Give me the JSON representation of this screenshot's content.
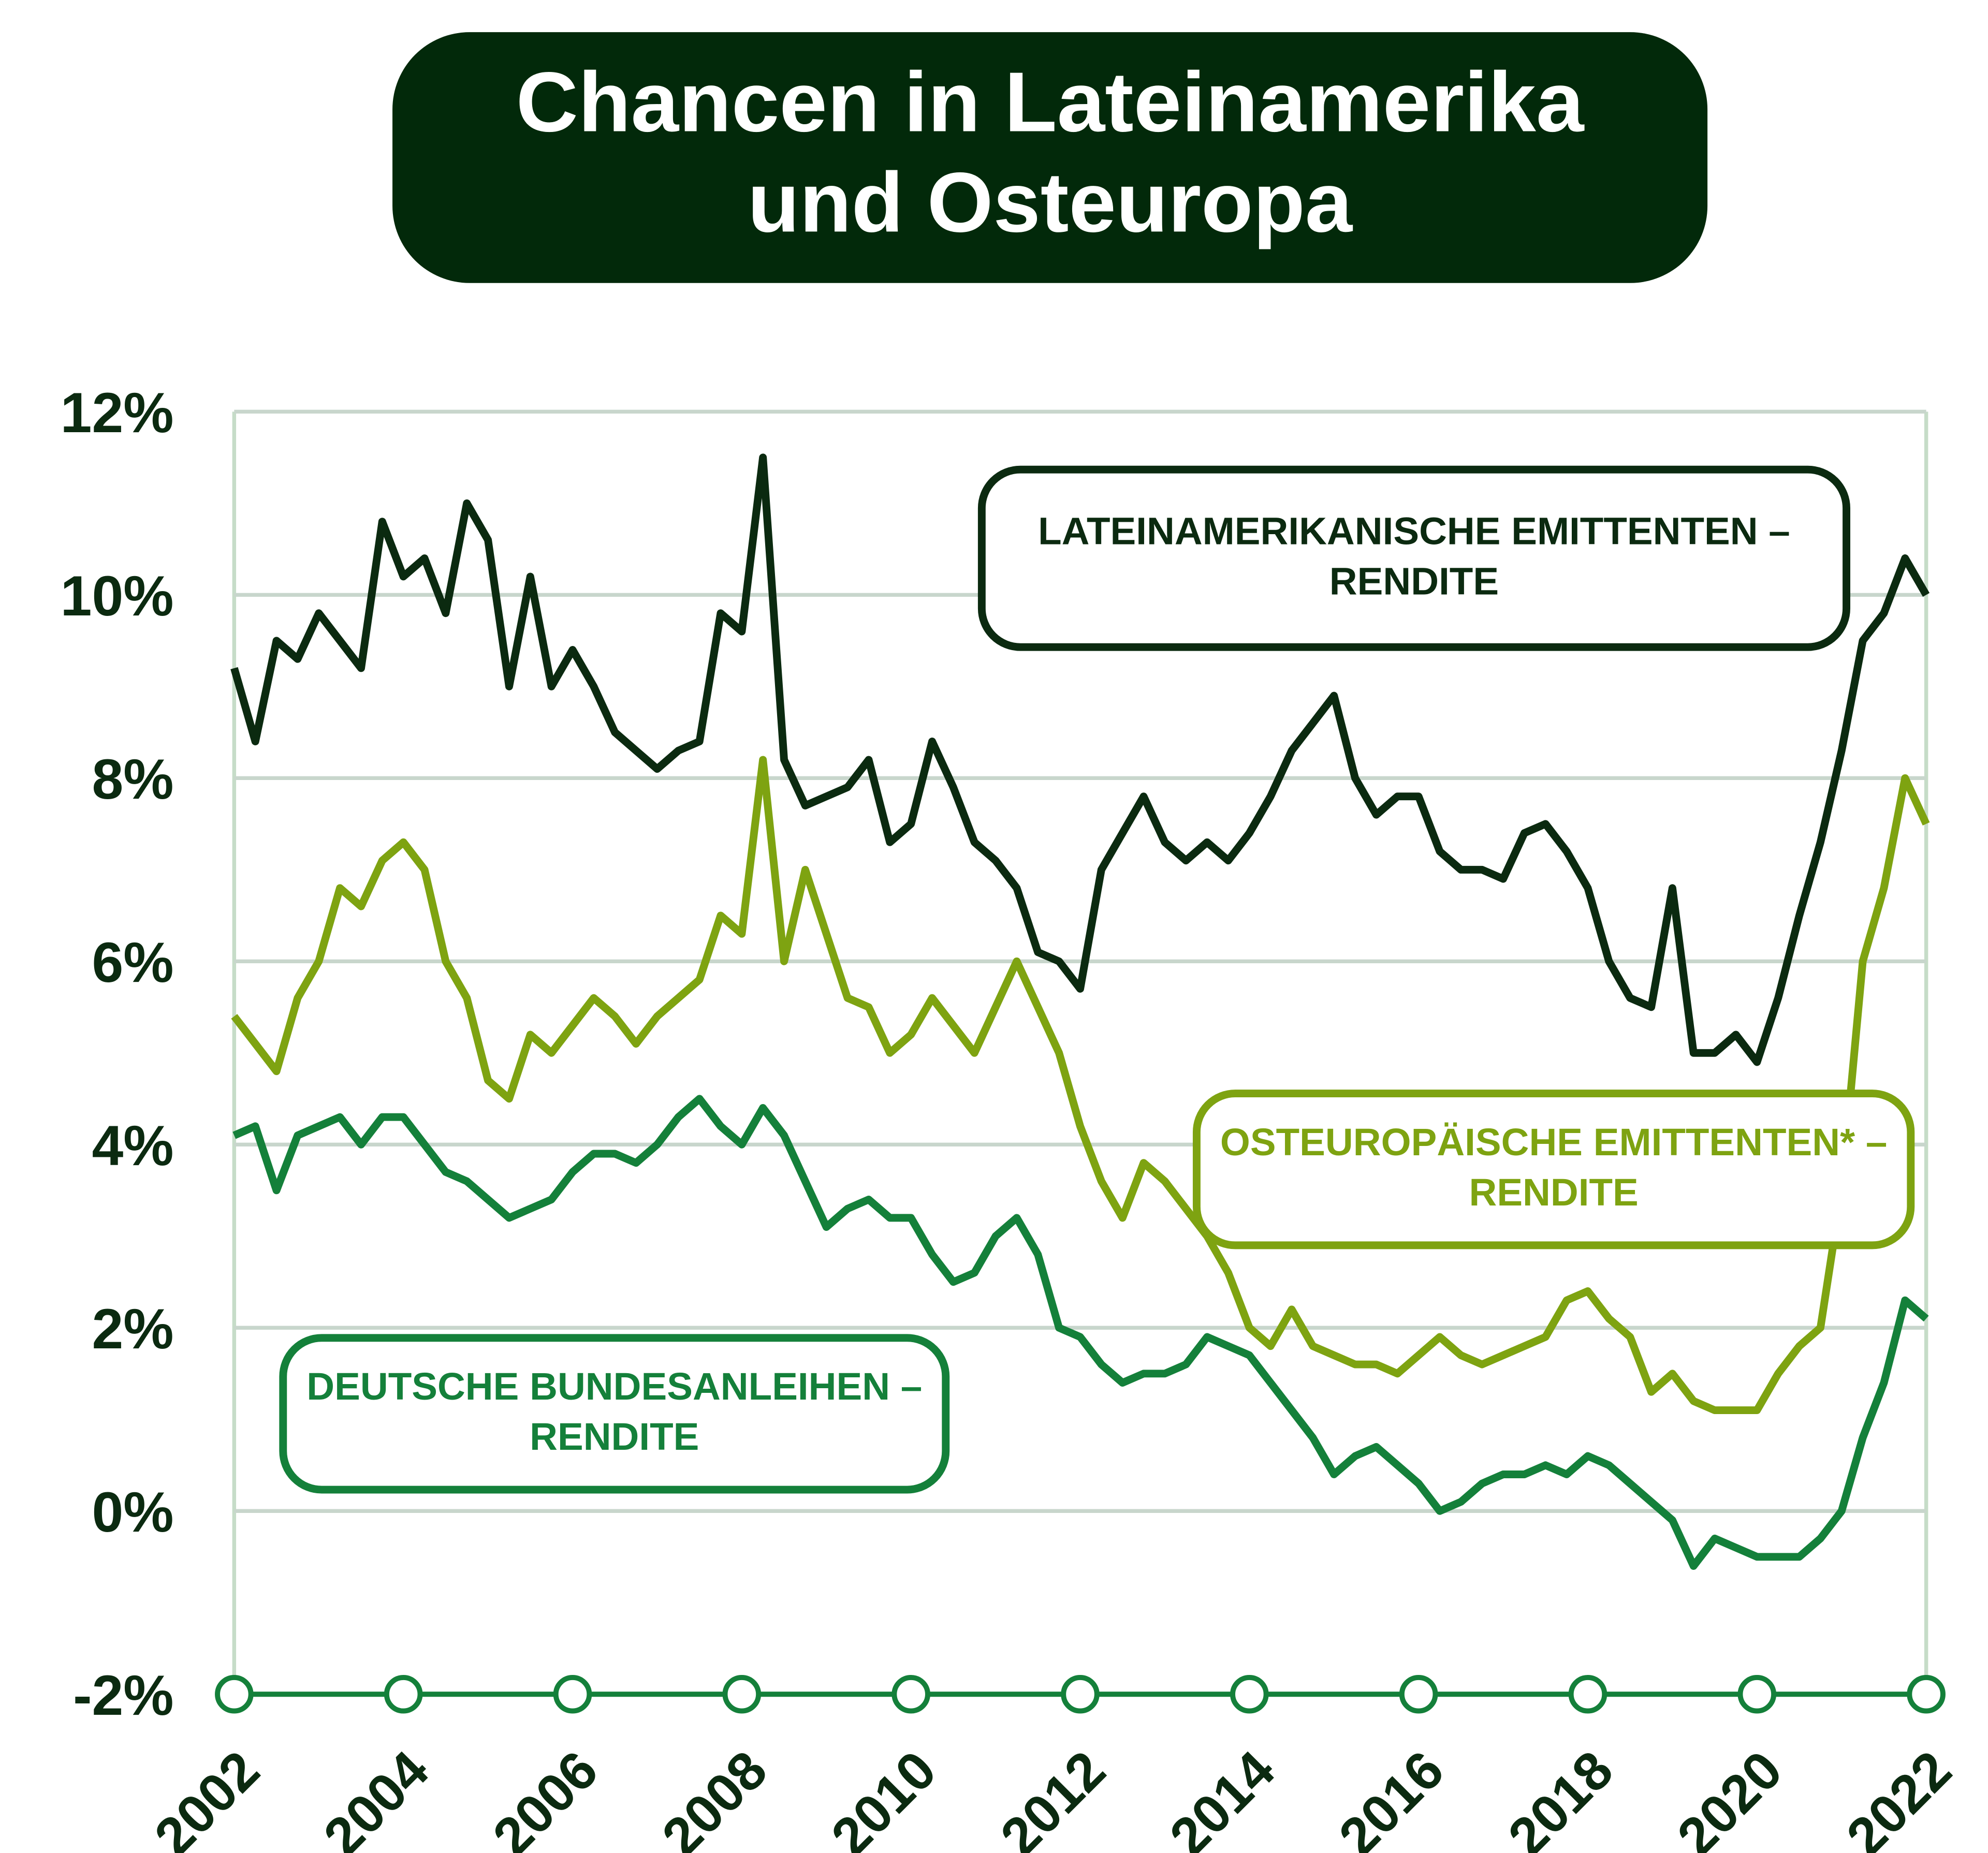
{
  "chart_data": {
    "type": "line",
    "title": [
      "Chancen in Lateinamerika",
      "und Osteuropa"
    ],
    "x": [
      2002,
      2002.25,
      2002.5,
      2002.75,
      2003,
      2003.25,
      2003.5,
      2003.75,
      2004,
      2004.25,
      2004.5,
      2004.75,
      2005,
      2005.25,
      2005.5,
      2005.75,
      2006,
      2006.25,
      2006.5,
      2006.75,
      2007,
      2007.25,
      2007.5,
      2007.75,
      2008,
      2008.25,
      2008.5,
      2008.75,
      2009,
      2009.25,
      2009.5,
      2009.75,
      2010,
      2010.25,
      2010.5,
      2010.75,
      2011,
      2011.25,
      2011.5,
      2011.75,
      2012,
      2012.25,
      2012.5,
      2012.75,
      2013,
      2013.25,
      2013.5,
      2013.75,
      2014,
      2014.25,
      2014.5,
      2014.75,
      2015,
      2015.25,
      2015.5,
      2015.75,
      2016,
      2016.25,
      2016.5,
      2016.75,
      2017,
      2017.25,
      2017.5,
      2017.75,
      2018,
      2018.25,
      2018.5,
      2018.75,
      2019,
      2019.25,
      2019.5,
      2019.75,
      2020,
      2020.25,
      2020.5,
      2020.75,
      2021,
      2021.25,
      2021.5,
      2021.75,
      2022
    ],
    "series": [
      {
        "name": "LATEINAMERIKANISCHE EMITTENTEN – RENDITE",
        "color": "#0b2a10",
        "values": [
          9.2,
          8.4,
          9.5,
          9.3,
          9.8,
          9.5,
          9.2,
          10.8,
          10.2,
          10.4,
          9.8,
          11.0,
          10.6,
          9.0,
          10.2,
          9.0,
          9.4,
          9.0,
          8.5,
          8.3,
          8.1,
          8.3,
          8.4,
          9.8,
          9.6,
          11.5,
          8.2,
          7.7,
          7.8,
          7.9,
          8.2,
          7.3,
          7.5,
          8.4,
          7.9,
          7.3,
          7.1,
          6.8,
          6.1,
          6.0,
          5.7,
          7.0,
          7.4,
          7.8,
          7.3,
          7.1,
          7.3,
          7.1,
          7.4,
          7.8,
          8.3,
          8.6,
          8.9,
          8.0,
          7.6,
          7.8,
          7.8,
          7.2,
          7.0,
          7.0,
          6.9,
          7.4,
          7.5,
          7.2,
          6.8,
          6.0,
          5.6,
          5.5,
          6.8,
          5.0,
          5.0,
          5.2,
          4.9,
          5.6,
          6.5,
          7.3,
          8.3,
          9.5,
          9.8,
          10.4,
          10.0
        ]
      },
      {
        "name": "OSTEUROPÄISCHE EMITTENTEN* – RENDITE",
        "color": "#7ea311",
        "values": [
          5.4,
          5.1,
          4.8,
          5.6,
          6.0,
          6.8,
          6.6,
          7.1,
          7.3,
          7.0,
          6.0,
          5.6,
          4.7,
          4.5,
          5.2,
          5.0,
          5.3,
          5.6,
          5.4,
          5.1,
          5.4,
          5.6,
          5.8,
          6.5,
          6.3,
          8.2,
          6.0,
          7.0,
          6.3,
          5.6,
          5.5,
          5.0,
          5.2,
          5.6,
          5.3,
          5.0,
          5.5,
          6.0,
          5.5,
          5.0,
          4.2,
          3.6,
          3.2,
          3.8,
          3.6,
          3.3,
          3.0,
          2.6,
          2.0,
          1.8,
          2.2,
          1.8,
          1.7,
          1.6,
          1.6,
          1.5,
          1.7,
          1.9,
          1.7,
          1.6,
          1.7,
          1.8,
          1.9,
          2.3,
          2.4,
          2.1,
          1.9,
          1.3,
          1.5,
          1.2,
          1.1,
          1.1,
          1.1,
          1.5,
          1.8,
          2.0,
          3.5,
          6.0,
          6.8,
          8.0,
          7.5
        ]
      },
      {
        "name": "DEUTSCHE BUNDESANLEIHEN – RENDITE",
        "color": "#14803a",
        "values": [
          4.1,
          4.2,
          3.5,
          4.1,
          4.2,
          4.3,
          4.0,
          4.3,
          4.3,
          4.0,
          3.7,
          3.6,
          3.4,
          3.2,
          3.3,
          3.4,
          3.7,
          3.9,
          3.9,
          3.8,
          4.0,
          4.3,
          4.5,
          4.2,
          4.0,
          4.4,
          4.1,
          3.6,
          3.1,
          3.3,
          3.4,
          3.2,
          3.2,
          2.8,
          2.5,
          2.6,
          3.0,
          3.2,
          2.8,
          2.0,
          1.9,
          1.6,
          1.4,
          1.5,
          1.5,
          1.6,
          1.9,
          1.8,
          1.7,
          1.4,
          1.1,
          0.8,
          0.4,
          0.6,
          0.7,
          0.5,
          0.3,
          0.0,
          0.1,
          0.3,
          0.4,
          0.4,
          0.5,
          0.4,
          0.6,
          0.5,
          0.3,
          0.1,
          -0.1,
          -0.6,
          -0.3,
          -0.4,
          -0.5,
          -0.5,
          -0.5,
          -0.3,
          0.0,
          0.8,
          1.4,
          2.3,
          2.1
        ]
      }
    ],
    "xlim": [
      2002,
      2022
    ],
    "xticks": [
      2002,
      2004,
      2006,
      2008,
      2010,
      2012,
      2014,
      2016,
      2018,
      2020,
      2022
    ],
    "ylim": [
      -2,
      12
    ],
    "yticks": [
      {
        "value": -2,
        "label": "-2%"
      },
      {
        "value": 0,
        "label": "0%"
      },
      {
        "value": 2,
        "label": "2%"
      },
      {
        "value": 4,
        "label": "4%"
      },
      {
        "value": 6,
        "label": "6%"
      },
      {
        "value": 8,
        "label": "8%"
      },
      {
        "value": 10,
        "label": "10%"
      },
      {
        "value": 12,
        "label": "12%"
      }
    ],
    "grid": true
  }
}
